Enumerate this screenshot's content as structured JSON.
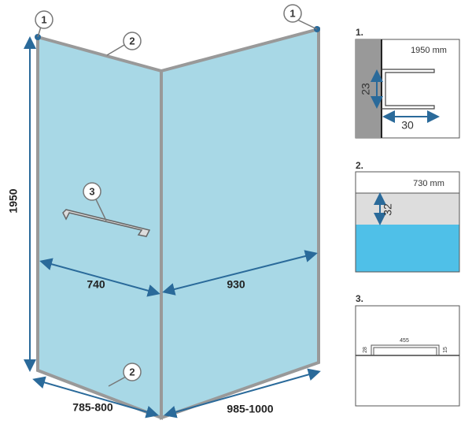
{
  "main": {
    "callouts": [
      "1",
      "1",
      "2",
      "2",
      "3"
    ],
    "dimensions": {
      "height": "1950",
      "inner_left": "740",
      "inner_right": "930",
      "base_left": "785-800",
      "base_right": "985-1000"
    }
  },
  "details": [
    {
      "label": "1.",
      "size": "1950 mm",
      "dims": [
        "23",
        "30"
      ]
    },
    {
      "label": "2.",
      "size": "730 mm",
      "dims": [
        "32"
      ]
    },
    {
      "label": "3.",
      "dims": [
        "455",
        "28",
        "15"
      ]
    }
  ]
}
